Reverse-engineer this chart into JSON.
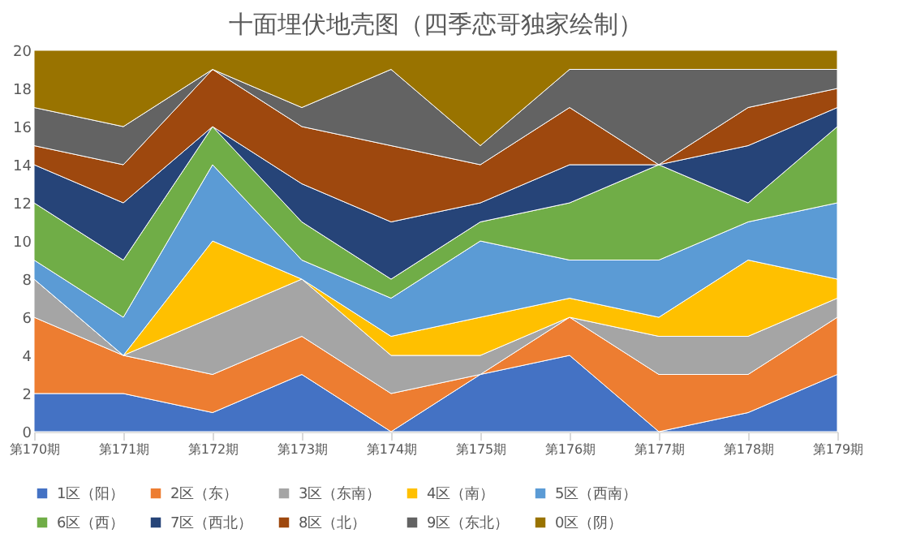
{
  "chart_data": {
    "type": "area",
    "stacked": true,
    "title": "十面埋伏地壳图（四季恋哥独家绘制）",
    "categories": [
      "第170期",
      "第171期",
      "第172期",
      "第173期",
      "第174期",
      "第175期",
      "第176期",
      "第177期",
      "第178期",
      "第179期"
    ],
    "series": [
      {
        "name": "1区（阳）",
        "color": "#4472c4",
        "values": [
          2,
          2,
          1,
          3,
          0,
          3,
          4,
          0,
          1,
          3
        ]
      },
      {
        "name": "2区（东）",
        "color": "#ed7d31",
        "values": [
          4,
          2,
          2,
          2,
          2,
          0,
          2,
          3,
          2,
          3
        ]
      },
      {
        "name": "3区（东南）",
        "color": "#a5a5a5",
        "values": [
          2,
          0,
          3,
          3,
          2,
          1,
          0,
          2,
          2,
          1
        ]
      },
      {
        "name": "4区（南）",
        "color": "#ffc000",
        "values": [
          0,
          0,
          4,
          0,
          1,
          2,
          1,
          1,
          4,
          1
        ]
      },
      {
        "name": "5区（西南）",
        "color": "#5b9bd5",
        "values": [
          1,
          2,
          4,
          1,
          2,
          4,
          2,
          3,
          2,
          4
        ]
      },
      {
        "name": "6区（西）",
        "color": "#70ad47",
        "values": [
          3,
          3,
          2,
          2,
          1,
          1,
          3,
          5,
          1,
          4
        ]
      },
      {
        "name": "7区（西北）",
        "color": "#264478",
        "values": [
          2,
          3,
          0,
          2,
          3,
          1,
          2,
          0,
          3,
          1
        ]
      },
      {
        "name": "8区（北）",
        "color": "#9e480e",
        "values": [
          1,
          2,
          3,
          3,
          4,
          2,
          3,
          0,
          2,
          1
        ]
      },
      {
        "name": "9区（东北）",
        "color": "#636363",
        "values": [
          2,
          2,
          0,
          1,
          4,
          1,
          2,
          5,
          2,
          1
        ]
      },
      {
        "name": "0区（阴）",
        "color": "#997300",
        "values": [
          3,
          4,
          1,
          3,
          1,
          5,
          1,
          1,
          1,
          1
        ]
      }
    ],
    "ylim": [
      0,
      20
    ],
    "yticks": [
      0,
      2,
      4,
      6,
      8,
      10,
      12,
      14,
      16,
      18,
      20
    ],
    "grid": false,
    "legend": "bottom"
  }
}
